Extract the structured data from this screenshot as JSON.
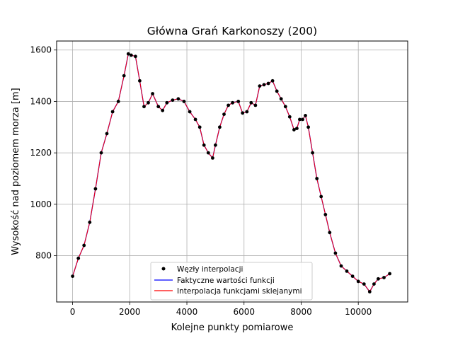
{
  "chart_data": {
    "type": "line",
    "title": "Główna Grań Karkonoszy (200)",
    "xlabel": "Kolejne punkty pomiarowe",
    "ylabel": "Wysokość nad poziomem morza [m]",
    "xlim": [
      -560,
      11730
    ],
    "ylim": [
      620,
      1635
    ],
    "xticks": [
      0,
      2000,
      4000,
      6000,
      8000,
      10000
    ],
    "xtick_labels": [
      "0",
      "2000",
      "4000",
      "6000",
      "8000",
      "10000"
    ],
    "yticks": [
      800,
      1000,
      1200,
      1400,
      1600
    ],
    "ytick_labels": [
      "800",
      "1000",
      "1200",
      "1400",
      "1600"
    ],
    "grid": true,
    "legend_position": "lower-center",
    "colors": {
      "nodes": "#000000",
      "actual": "#0000ff",
      "interpolation": "#ff0000",
      "grid": "#b0b0b0"
    },
    "legend": [
      {
        "label": "Węzły interpolacji",
        "style": "dot"
      },
      {
        "label": "Faktyczne wartości funkcji",
        "style": "line-blue"
      },
      {
        "label": "Interpolacja funkcjami sklejanymi",
        "style": "line-red"
      }
    ],
    "x": [
      0,
      200,
      400,
      600,
      800,
      1000,
      1200,
      1400,
      1600,
      1800,
      1950,
      2050,
      2200,
      2350,
      2500,
      2650,
      2800,
      3000,
      3150,
      3300,
      3500,
      3700,
      3900,
      4100,
      4300,
      4450,
      4600,
      4750,
      4900,
      5000,
      5150,
      5300,
      5450,
      5600,
      5800,
      5950,
      6100,
      6250,
      6400,
      6550,
      6700,
      6850,
      7000,
      7150,
      7300,
      7450,
      7600,
      7750,
      7850,
      7950,
      8050,
      8150,
      8250,
      8400,
      8550,
      8700,
      8850,
      9000,
      9200,
      9400,
      9600,
      9800,
      10000,
      10200,
      10400,
      10550,
      10700,
      10900,
      11100
    ],
    "values": [
      720,
      790,
      840,
      930,
      1060,
      1200,
      1275,
      1360,
      1400,
      1500,
      1585,
      1580,
      1575,
      1480,
      1380,
      1395,
      1430,
      1380,
      1365,
      1395,
      1405,
      1410,
      1400,
      1360,
      1330,
      1300,
      1230,
      1200,
      1180,
      1230,
      1300,
      1350,
      1385,
      1395,
      1400,
      1355,
      1360,
      1395,
      1385,
      1460,
      1465,
      1470,
      1480,
      1440,
      1410,
      1380,
      1340,
      1290,
      1295,
      1330,
      1330,
      1345,
      1300,
      1200,
      1100,
      1030,
      960,
      890,
      810,
      760,
      740,
      720,
      700,
      690,
      660,
      690,
      710,
      715,
      730
    ]
  }
}
